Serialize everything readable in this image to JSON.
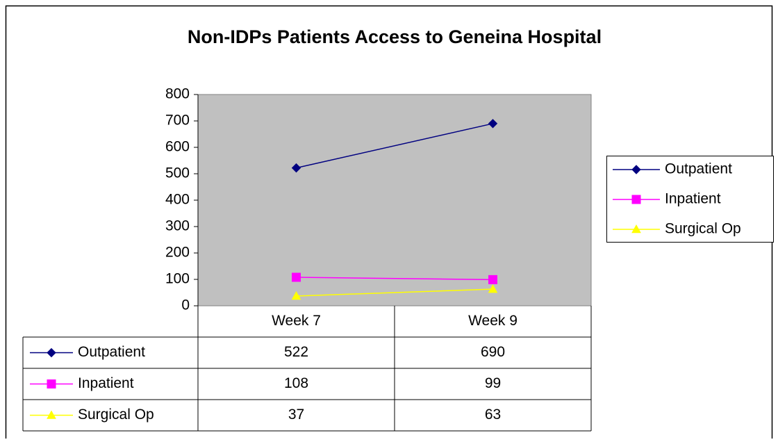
{
  "chart_data": {
    "type": "line",
    "title": "Non-IDPs Patients Access to Geneina Hospital",
    "categories": [
      "Week 7",
      "Week 9"
    ],
    "series": [
      {
        "name": "Outpatient",
        "color": "#000080",
        "marker": "diamond",
        "values": [
          522,
          690
        ]
      },
      {
        "name": "Inpatient",
        "color": "#ff00ff",
        "marker": "square",
        "values": [
          108,
          99
        ]
      },
      {
        "name": "Surgical Op",
        "color": "#ffff00",
        "marker": "triangle",
        "values": [
          37,
          63
        ]
      }
    ],
    "ylim": [
      0,
      800
    ],
    "yticks": [
      0,
      100,
      200,
      300,
      400,
      500,
      600,
      700,
      800
    ],
    "grid": false,
    "legend": "right",
    "data_table": true,
    "plot_background": "#c0c0c0"
  }
}
